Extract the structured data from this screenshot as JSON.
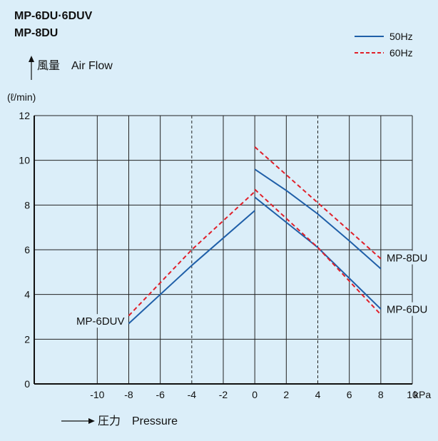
{
  "chart_data": {
    "type": "line",
    "title": [
      "MP-6DU·6DUV",
      "MP-8DU"
    ],
    "ylabel": "風量　Air Flow",
    "yunit": "(ℓ/min)",
    "xlabel": "圧力　Pressure",
    "xunit": "kPa",
    "xlim": [
      -14,
      10
    ],
    "ylim": [
      0,
      12
    ],
    "xticks": [
      -10,
      -8,
      -6,
      -4,
      -2,
      0,
      2,
      4,
      6,
      8,
      10
    ],
    "yticks": [
      0,
      2,
      4,
      6,
      8,
      10,
      12
    ],
    "dashed_gridlines_x": [
      -4,
      4
    ],
    "grid": true,
    "legend_position": "top-right",
    "legend": [
      {
        "label": "50Hz",
        "color": "#1f5fa8",
        "style": "solid"
      },
      {
        "label": "60Hz",
        "color": "#e0202a",
        "style": "dashed"
      }
    ],
    "series": [
      {
        "model": "MP-8DU",
        "freq": "50Hz",
        "color": "#1f5fa8",
        "dash": false,
        "points": [
          [
            0,
            9.6
          ],
          [
            2,
            8.65
          ],
          [
            4,
            7.6
          ],
          [
            6,
            6.4
          ],
          [
            8,
            5.15
          ]
        ]
      },
      {
        "model": "MP-8DU",
        "freq": "60Hz",
        "color": "#e0202a",
        "dash": true,
        "points": [
          [
            0,
            10.6
          ],
          [
            8,
            5.6
          ]
        ]
      },
      {
        "model": "MP-6DU",
        "freq": "50Hz",
        "color": "#1f5fa8",
        "dash": false,
        "points": [
          [
            0,
            8.35
          ],
          [
            4,
            6.1
          ],
          [
            8,
            3.35
          ]
        ]
      },
      {
        "model": "MP-6DU",
        "freq": "60Hz",
        "color": "#e0202a",
        "dash": true,
        "points": [
          [
            0,
            8.7
          ],
          [
            4,
            6.1
          ],
          [
            8,
            3.1
          ]
        ]
      },
      {
        "model": "MP-6DUV",
        "freq": "50Hz",
        "color": "#1f5fa8",
        "dash": false,
        "points": [
          [
            -8,
            2.7
          ],
          [
            -4,
            5.3
          ],
          [
            0,
            7.75
          ]
        ]
      },
      {
        "model": "MP-6DUV",
        "freq": "60Hz",
        "color": "#e0202a",
        "dash": true,
        "points": [
          [
            -8,
            3.05
          ],
          [
            -4,
            6.0
          ],
          [
            0,
            8.6
          ]
        ]
      }
    ],
    "annotations": [
      {
        "text": "MP-8DU",
        "x": 8,
        "y": 5.6
      },
      {
        "text": "MP-6DU",
        "x": 8,
        "y": 3.3
      },
      {
        "text": "MP-6DUV",
        "x": -8,
        "y": 2.9
      }
    ]
  }
}
